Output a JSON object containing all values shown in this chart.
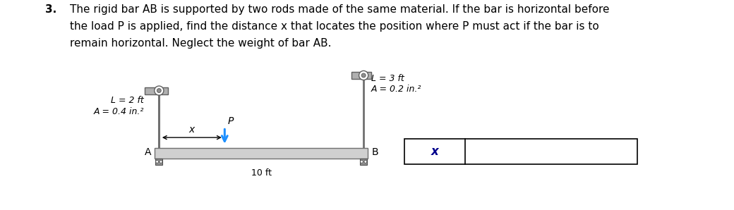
{
  "title_number": "3.",
  "title_text": "The rigid bar AB is supported by two rods made of the same material. If the bar is horizontal before\nthe load P is applied, find the distance x that locates the position where P must act if the bar is to\nremain horizontal. Neglect the weight of bar AB.",
  "title_fontsize": 11,
  "bg_color": "#ffffff",
  "bar_color": "#d0d0d0",
  "rod_color": "#a0a0a0",
  "wall_color": "#b0b0b0",
  "arrow_color": "#1e90ff",
  "text_color": "#000000",
  "dark_blue": "#00008B",
  "label_left_L": "L = 2 ft",
  "label_left_A": "A = 0.4 in.²",
  "label_right_L": "L = 3 ft",
  "label_right_A": "A = 0.2 in.²",
  "label_10ft": "10 ft",
  "label_x": "x",
  "label_P": "P",
  "label_A": "A",
  "label_B": "B",
  "answer_label": "x",
  "fig_w": 10.4,
  "fig_h": 2.98,
  "dpi": 100
}
